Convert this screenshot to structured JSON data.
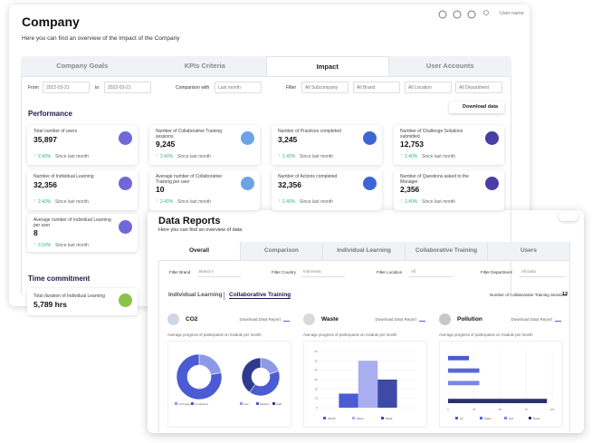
{
  "company": {
    "title": "Company",
    "subtitle": "Here you can find an overview of the Impact of the Company",
    "user": "User name",
    "tabs": [
      "Company Goals",
      "KPIs Criteria",
      "Impact",
      "User Accounts"
    ],
    "active_tab": 2,
    "filters": [
      {
        "label": "From",
        "value": "2022-03-21"
      },
      {
        "label": "to",
        "value": "2022-03-21"
      },
      {
        "label": "Comparison with",
        "value": "Last month"
      },
      {
        "label": "Filter",
        "value": "All Subcompany"
      },
      {
        "value": "All Brand"
      },
      {
        "value": "All Location"
      },
      {
        "value": "All Department"
      }
    ],
    "section": "Performance",
    "download": "Download data",
    "kpis": [
      {
        "label": "Total number of users",
        "value": "35,897",
        "change": "2.40%",
        "since": "Since last month"
      },
      {
        "label": "Number of Collaborative Training sessions",
        "value": "9,245",
        "change": "2.40%",
        "since": "Since last month"
      },
      {
        "label": "Number of Practices completed",
        "value": "3,245",
        "change": "2.40%",
        "since": "Since last month"
      },
      {
        "label": "Number of Challenge Solutions submitted",
        "value": "12,753",
        "change": "2.40%",
        "since": "Since last month"
      },
      {
        "label": "Number of Individual Learning",
        "value": "32,356",
        "change": "2.40%",
        "since": "Since last month"
      },
      {
        "label": "Average number of Collaborative Training per user",
        "value": "10",
        "change": "2.40%",
        "since": "Since last month"
      },
      {
        "label": "Number of Actions completed",
        "value": "32,356",
        "change": "2.40%",
        "since": "Since last month"
      },
      {
        "label": "Number of Questions asked to the Manager",
        "value": "2,356",
        "change": "2.40%",
        "since": "Since last month"
      },
      {
        "label": "Average number of Individual Learning per user",
        "value": "8",
        "change": "3.10%",
        "since": "Since last month"
      }
    ],
    "section2": "Time commitment",
    "kpi2": {
      "label": "Total duration of Individual Learning",
      "value": "5,789 hrs"
    }
  },
  "reports": {
    "title": "Data Reports",
    "subtitle": "Here you can find an overview of data",
    "tabs": [
      "Overall",
      "Comparison",
      "Individual Learning",
      "Collaborative Training",
      "Users"
    ],
    "active_tab": 0,
    "filters": [
      {
        "label": "Filter Brand",
        "value": "Brand A"
      },
      {
        "label": "Filter Country",
        "value": "Indonesia"
      },
      {
        "label": "Filter Location",
        "value": "All"
      },
      {
        "label": "Filter Department",
        "value": "All Data"
      }
    ],
    "subtabs": [
      "Individual Learning",
      "Collaborative Training"
    ],
    "active_subtab": 1,
    "sessions_label": "Number of Collaborative Training Sessions:",
    "sessions": 12,
    "panels": [
      {
        "name": "CO2",
        "download": "Download Data Report",
        "chart_title": "Average progress of participants on module per month",
        "chart": {
          "type": "donut",
          "series": [
            {
              "categories": [
                "In Progress",
                "Completed"
              ],
              "values": [
                22,
                78
              ],
              "colors": [
                "#8e98e8",
                "#4b5bd4"
              ]
            },
            {
              "categories": [
                "Low",
                "Medium",
                "High"
              ],
              "values": [
                20,
                40,
                40
              ],
              "colors": [
                "#8e98e8",
                "#4b5bd4",
                "#2f3a8f"
              ]
            }
          ]
        }
      },
      {
        "name": "Waste",
        "download": "Download Data Report",
        "chart_title": "Average progress of participants on module per month",
        "chart": {
          "type": "bar",
          "categories": [
            "Plastic",
            "Paper",
            "Metal"
          ],
          "values": [
            15,
            50,
            30
          ],
          "colors": [
            "#4b5bd4",
            "#a9aef0",
            "#3d4aa8"
          ],
          "ylim": [
            0,
            60
          ],
          "yticks": [
            0,
            10,
            20,
            30,
            40,
            50,
            60
          ]
        }
      },
      {
        "name": "Pollution",
        "download": "Download Data Report",
        "chart_title": "Average progress of participants on module per month",
        "chart": {
          "type": "hbar",
          "categories": [
            "Air",
            "Water",
            "Soil",
            "Noise"
          ],
          "values": [
            20,
            30,
            30,
            95
          ],
          "colors": [
            "#4b5bd4",
            "#5a66d8",
            "#7a86e0",
            "#2a3170"
          ],
          "xlim": [
            0,
            100
          ],
          "xticks": [
            0,
            25,
            50,
            75,
            100
          ]
        }
      }
    ]
  }
}
